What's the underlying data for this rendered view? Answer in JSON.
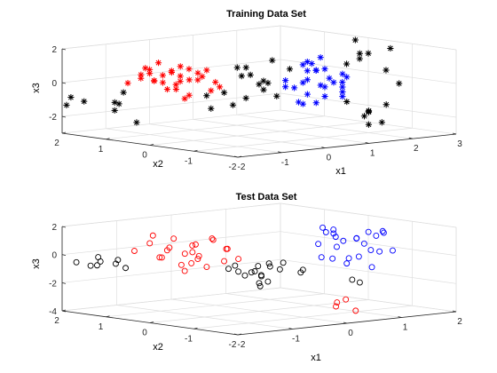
{
  "chart_data": [
    {
      "type": "scatter3d",
      "title": "Training Data Set",
      "xlabel": "x1",
      "ylabel": "x2",
      "zlabel": "x3",
      "xlim": [
        -2,
        3
      ],
      "ylim": [
        -2,
        2
      ],
      "zlim": [
        -3,
        2
      ],
      "xticks": [
        "-2",
        "-1",
        "0",
        "1",
        "2",
        "3"
      ],
      "yticks": [
        "-2",
        "-1",
        "0",
        "1",
        "2"
      ],
      "zticks": [
        "-2",
        "0",
        "2"
      ],
      "marker": "*",
      "grid": true,
      "series": [
        {
          "color": "#ff0000",
          "points": [
            [
              -1.2,
              1.0,
              0.6
            ],
            [
              -1.0,
              1.1,
              0.9
            ],
            [
              -0.8,
              1.2,
              0.5
            ],
            [
              -0.6,
              0.9,
              0.7
            ],
            [
              -0.9,
              0.6,
              0.8
            ],
            [
              -1.1,
              0.8,
              0.3
            ],
            [
              -0.7,
              1.0,
              0.0
            ],
            [
              -0.5,
              0.8,
              0.4
            ],
            [
              -0.3,
              0.6,
              0.6
            ],
            [
              -0.4,
              1.0,
              -0.2
            ],
            [
              -0.9,
              1.3,
              0.2
            ],
            [
              -1.3,
              0.6,
              0.4
            ],
            [
              -0.2,
              0.4,
              -0.4
            ],
            [
              -0.6,
              0.5,
              -0.6
            ],
            [
              -0.8,
              0.8,
              -0.3
            ],
            [
              -0.1,
              0.7,
              0.3
            ],
            [
              0.0,
              0.9,
              0.0
            ],
            [
              -0.5,
              1.2,
              0.3
            ],
            [
              -1.0,
              0.4,
              -0.1
            ],
            [
              -0.4,
              0.3,
              0.9
            ],
            [
              -0.7,
              0.6,
              1.1
            ],
            [
              -0.2,
              1.1,
              -0.1
            ],
            [
              -1.2,
              1.3,
              0.0
            ],
            [
              -0.6,
              1.4,
              0.6
            ],
            [
              -0.3,
              0.2,
              0.2
            ],
            [
              -0.9,
              0.2,
              0.5
            ],
            [
              0.1,
              0.5,
              -0.3
            ],
            [
              -0.5,
              0.7,
              -0.9
            ],
            [
              -0.8,
              1.0,
              1.2
            ],
            [
              -0.2,
              0.9,
              0.7
            ]
          ]
        },
        {
          "color": "#0000ff",
          "points": [
            [
              0.8,
              -0.8,
              0.4
            ],
            [
              1.0,
              -0.6,
              0.8
            ],
            [
              1.2,
              -1.0,
              0.2
            ],
            [
              0.9,
              -1.2,
              0.6
            ],
            [
              1.1,
              -0.4,
              0.0
            ],
            [
              0.7,
              -0.9,
              -0.4
            ],
            [
              1.3,
              -0.7,
              -0.2
            ],
            [
              1.0,
              -1.4,
              0.9
            ],
            [
              0.6,
              -0.5,
              0.3
            ],
            [
              1.4,
              -1.1,
              0.5
            ],
            [
              0.8,
              -1.0,
              -0.9
            ],
            [
              1.2,
              -0.3,
              1.0
            ],
            [
              0.9,
              -0.7,
              1.4
            ],
            [
              1.1,
              -1.3,
              -0.5
            ],
            [
              0.5,
              -0.8,
              0.0
            ],
            [
              1.0,
              -0.9,
              1.7
            ],
            [
              1.3,
              -0.5,
              0.7
            ],
            [
              0.7,
              -1.1,
              1.1
            ],
            [
              1.2,
              -0.8,
              -0.7
            ],
            [
              0.8,
              -0.3,
              -0.2
            ],
            [
              1.5,
              -0.9,
              0.1
            ],
            [
              1.0,
              -0.5,
              -1.2
            ],
            [
              0.6,
              -1.3,
              0.3
            ],
            [
              1.1,
              -0.6,
              1.2
            ],
            [
              0.9,
              -1.5,
              -0.1
            ],
            [
              1.4,
              -0.6,
              0.8
            ],
            [
              0.8,
              -0.6,
              -1.0
            ],
            [
              1.2,
              -1.2,
              0.0
            ]
          ]
        },
        {
          "color": "#000000",
          "points": [
            [
              -2.0,
              1.8,
              -0.8
            ],
            [
              -1.9,
              1.6,
              -1.0
            ],
            [
              -2.0,
              1.9,
              -1.3
            ],
            [
              -1.6,
              1.2,
              -1.0
            ],
            [
              -1.4,
              1.4,
              -1.6
            ],
            [
              -1.3,
              1.0,
              -2.2
            ],
            [
              -1.5,
              1.1,
              -0.4
            ],
            [
              -1.2,
              1.5,
              -1.3
            ],
            [
              0.3,
              0.2,
              0.4
            ],
            [
              0.6,
              0.0,
              0.1
            ],
            [
              0.4,
              -0.2,
              -0.3
            ],
            [
              0.1,
              0.4,
              -0.6
            ],
            [
              0.5,
              0.3,
              -1.0
            ],
            [
              0.2,
              -0.1,
              0.6
            ],
            [
              0.7,
              0.2,
              -0.2
            ],
            [
              0.0,
              0.1,
              -1.2
            ],
            [
              0.3,
              -0.4,
              0.2
            ],
            [
              -0.1,
              0.6,
              -0.8
            ],
            [
              0.6,
              -0.3,
              -0.7
            ],
            [
              0.4,
              0.4,
              0.8
            ],
            [
              1.4,
              -1.6,
              -1.4
            ],
            [
              1.6,
              -1.3,
              -1.8
            ],
            [
              1.2,
              -1.8,
              -1.2
            ],
            [
              1.5,
              -1.5,
              -2.2
            ],
            [
              1.8,
              -1.2,
              -1.6
            ],
            [
              1.3,
              -1.2,
              -0.9
            ],
            [
              1.7,
              -1.7,
              -1.0
            ],
            [
              1.4,
              -1.9,
              -1.9
            ],
            [
              2.2,
              -0.6,
              1.5
            ],
            [
              2.5,
              -0.3,
              1.0
            ],
            [
              2.6,
              -0.9,
              1.8
            ],
            [
              2.8,
              -0.2,
              1.2
            ],
            [
              2.4,
              -1.0,
              0.6
            ],
            [
              2.0,
              -0.5,
              0.9
            ],
            [
              2.9,
              -0.8,
              -0.4
            ],
            [
              2.3,
              -0.4,
              2.2
            ],
            [
              0.9,
              0.1,
              1.2
            ],
            [
              1.1,
              -0.1,
              0.7
            ],
            [
              0.2,
              0.0,
              1.0
            ],
            [
              -0.3,
              0.3,
              -1.4
            ]
          ]
        }
      ]
    },
    {
      "type": "scatter3d",
      "title": "Test Data Set",
      "xlabel": "x1",
      "ylabel": "x2",
      "zlabel": "x3",
      "xlim": [
        -2,
        2
      ],
      "ylim": [
        -2,
        2
      ],
      "zlim": [
        -4,
        2
      ],
      "xticks": [
        "-2",
        "-1",
        "0",
        "1",
        "2"
      ],
      "yticks": [
        "-2",
        "-1",
        "0",
        "1",
        "2"
      ],
      "zticks": [
        "-4",
        "-2",
        "0",
        "2"
      ],
      "marker": "o",
      "grid": true,
      "series": [
        {
          "color": "#ff0000",
          "points": [
            [
              -1.2,
              1.0,
              0.9
            ],
            [
              -1.0,
              0.8,
              0.6
            ],
            [
              -0.8,
              1.1,
              0.2
            ],
            [
              -0.6,
              0.7,
              0.7
            ],
            [
              -0.9,
              0.4,
              0.4
            ],
            [
              -1.1,
              0.9,
              -0.1
            ],
            [
              -0.7,
              0.5,
              0.0
            ],
            [
              -0.5,
              0.9,
              0.5
            ],
            [
              -0.4,
              0.3,
              -0.4
            ],
            [
              -0.8,
              0.2,
              -0.6
            ],
            [
              -1.3,
              0.6,
              0.1
            ],
            [
              -0.3,
              0.7,
              1.0
            ],
            [
              -0.6,
              1.2,
              0.9
            ],
            [
              -1.0,
              0.3,
              -0.3
            ],
            [
              -0.2,
              0.5,
              0.3
            ],
            [
              -0.7,
              0.9,
              -0.8
            ],
            [
              -0.5,
              0.1,
              0.6
            ],
            [
              -0.9,
              1.3,
              1.2
            ],
            [
              -0.3,
              0.1,
              -0.2
            ],
            [
              -1.2,
              0.2,
              0.5
            ],
            [
              -0.4,
              0.9,
              -0.5
            ],
            [
              -0.6,
              0.3,
              1.2
            ],
            [
              -0.8,
              0.7,
              -1.1
            ],
            [
              -1.4,
              1.1,
              0.4
            ],
            [
              0.3,
              -1.6,
              -2.6
            ],
            [
              0.2,
              -1.5,
              -3.1
            ],
            [
              0.4,
              -1.7,
              -3.4
            ],
            [
              0.3,
              -1.4,
              -2.9
            ]
          ]
        },
        {
          "color": "#0000ff",
          "points": [
            [
              0.8,
              -0.7,
              1.5
            ],
            [
              1.0,
              -0.5,
              1.1
            ],
            [
              1.2,
              -0.9,
              0.7
            ],
            [
              0.9,
              -1.1,
              1.3
            ],
            [
              1.1,
              -0.4,
              0.3
            ],
            [
              0.7,
              -0.8,
              -0.2
            ],
            [
              1.3,
              -0.6,
              0.9
            ],
            [
              1.0,
              -1.3,
              0.5
            ],
            [
              0.6,
              -0.6,
              0.8
            ],
            [
              1.4,
              -1.0,
              0.1
            ],
            [
              0.8,
              -1.0,
              -0.5
            ],
            [
              1.2,
              -0.2,
              1.4
            ],
            [
              1.5,
              -0.8,
              1.1
            ],
            [
              1.6,
              -0.5,
              1.2
            ],
            [
              1.7,
              -0.7,
              1.3
            ],
            [
              1.8,
              -0.6,
              1.1
            ],
            [
              0.9,
              -0.3,
              -0.4
            ],
            [
              1.1,
              -1.2,
              -0.8
            ],
            [
              0.7,
              -1.4,
              0.2
            ],
            [
              1.3,
              -0.3,
              0.6
            ],
            [
              0.5,
              -0.9,
              1.8
            ],
            [
              0.6,
              -0.7,
              2.0
            ],
            [
              1.0,
              -0.8,
              -0.3
            ],
            [
              1.4,
              -1.3,
              0.3
            ]
          ]
        },
        {
          "color": "#000000",
          "points": [
            [
              -1.9,
              1.8,
              -0.5
            ],
            [
              -1.8,
              1.6,
              -0.7
            ],
            [
              -1.7,
              1.5,
              -0.4
            ],
            [
              -1.6,
              1.7,
              -0.8
            ],
            [
              -1.5,
              1.4,
              -0.6
            ],
            [
              -1.4,
              1.3,
              -0.9
            ],
            [
              -1.5,
              1.8,
              -0.3
            ],
            [
              -1.3,
              1.6,
              -0.5
            ],
            [
              -0.2,
              0.3,
              -0.8
            ],
            [
              0.0,
              0.1,
              -1.2
            ],
            [
              0.1,
              -0.1,
              -0.6
            ],
            [
              -0.1,
              0.2,
              -1.5
            ],
            [
              0.2,
              0.0,
              -0.9
            ],
            [
              0.0,
              -0.2,
              -1.8
            ],
            [
              -0.3,
              0.1,
              -1.1
            ],
            [
              0.1,
              0.3,
              -1.4
            ],
            [
              -0.1,
              -0.1,
              -0.7
            ],
            [
              0.2,
              0.2,
              -1.6
            ],
            [
              0.0,
              0.0,
              -2.0
            ],
            [
              -0.2,
              -0.3,
              -1.3
            ],
            [
              0.3,
              -0.1,
              -1.1
            ],
            [
              0.1,
              0.1,
              -2.3
            ],
            [
              -0.4,
              0.2,
              -0.9
            ],
            [
              0.2,
              -0.3,
              -0.5
            ],
            [
              0.9,
              -1.0,
              -1.7
            ],
            [
              1.2,
              -0.8,
              -2.1
            ],
            [
              0.4,
              -0.5,
              -1.0
            ],
            [
              0.6,
              -0.2,
              -1.4
            ]
          ]
        }
      ]
    }
  ]
}
